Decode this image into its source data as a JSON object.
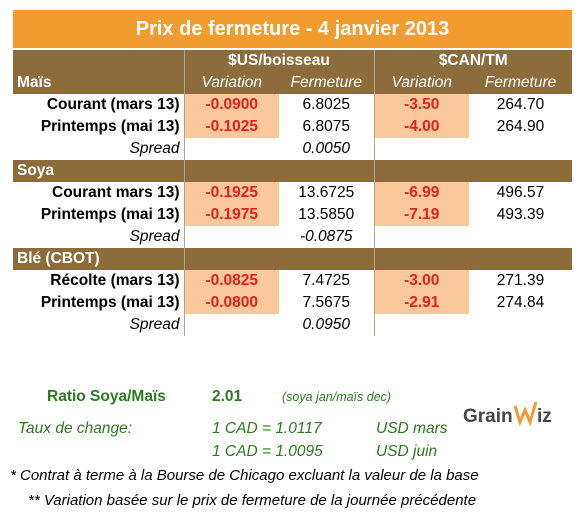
{
  "title": "Prix de fermeture - 4 janvier 2013",
  "headers": {
    "usd_group": "$US/boisseau",
    "cad_group": "$CAN/TM",
    "variation": "Variation",
    "fermeture": "Fermeture"
  },
  "sections": [
    {
      "name": "Maïs",
      "rows": [
        {
          "label": "Courant (mars 13)",
          "usd_var": "-0.0900",
          "usd_close": "6.8025",
          "cad_var": "-3.50",
          "cad_close": "264.70"
        },
        {
          "label": "Printemps (mai 13)",
          "usd_var": "-0.1025",
          "usd_close": "6.8075",
          "cad_var": "-4.00",
          "cad_close": "264.90"
        }
      ],
      "spread_label": "Spread",
      "spread": "0.0050"
    },
    {
      "name": "Soya",
      "rows": [
        {
          "label": "Courant mars 13)",
          "usd_var": "-0.1925",
          "usd_close": "13.6725",
          "cad_var": "-6.99",
          "cad_close": "496.57"
        },
        {
          "label": "Printemps (mai 13)",
          "usd_var": "-0.1975",
          "usd_close": "13.5850",
          "cad_var": "-7.19",
          "cad_close": "493.39"
        }
      ],
      "spread_label": "Spread",
      "spread": "-0.0875"
    },
    {
      "name": "Blé (CBOT)",
      "rows": [
        {
          "label": "Récolte (mars 13)",
          "usd_var": "-0.0825",
          "usd_close": "7.4725",
          "cad_var": "-3.00",
          "cad_close": "271.39"
        },
        {
          "label": "Printemps (mai 13)",
          "usd_var": "-0.0800",
          "usd_close": "7.5675",
          "cad_var": "-2.91",
          "cad_close": "274.84"
        }
      ],
      "spread_label": "Spread",
      "spread": "0.0950"
    }
  ],
  "ratio": {
    "label": "Ratio Soya/Maïs",
    "value": "2.01",
    "note": "(soya jan/maïs dec)"
  },
  "exchange": {
    "label": "Taux de change:",
    "rate1": "1 CAD =  1.0117",
    "rate1_unit": "USD mars",
    "rate2": "1 CAD =  1.0095",
    "rate2_unit": "USD juin"
  },
  "logo_text": "GrainWiz",
  "notes": [
    "* Contrat à terme à la Bourse de Chicago excluant la valeur de la base",
    "** Variation basée sur le prix de fermeture de la journée précédente"
  ],
  "colors": {
    "title_bg": "#f29b2f",
    "header_bg": "#8c6c3a",
    "neg_bg": "#fbc89a",
    "neg_text": "#e02020",
    "green": "#2a7a1e"
  }
}
